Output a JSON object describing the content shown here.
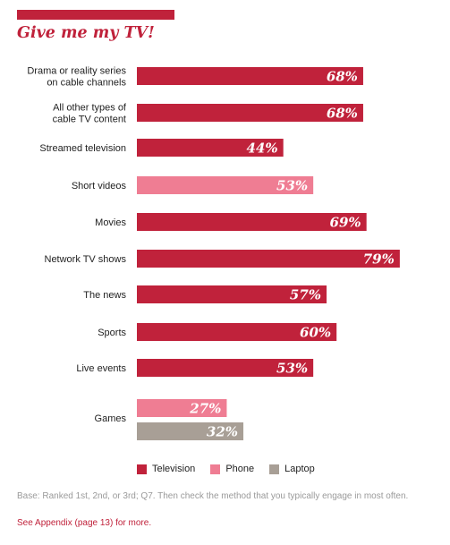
{
  "title": "Give me my TV!",
  "colors": {
    "accent": "#C0223B",
    "television": "#C0223B",
    "phone": "#EF7D93",
    "laptop": "#A89F96",
    "footnote": "#9A9A9A",
    "link": "#C0223B"
  },
  "chart_data": {
    "type": "bar",
    "orientation": "horizontal",
    "title": "Give me my TV!",
    "value_suffix": "%",
    "xlim": [
      0,
      100
    ],
    "grid": false,
    "legend_position": "bottom",
    "legend": [
      "Television",
      "Phone",
      "Laptop"
    ],
    "categories": [
      {
        "label": [
          "Drama or reality series",
          "on cable channels"
        ],
        "bars": [
          {
            "series": "Television",
            "value": 68
          }
        ]
      },
      {
        "label": [
          "All other types of",
          "cable TV content"
        ],
        "bars": [
          {
            "series": "Television",
            "value": 68
          }
        ]
      },
      {
        "label": [
          "Streamed television"
        ],
        "bars": [
          {
            "series": "Television",
            "value": 44
          }
        ]
      },
      {
        "label": [
          "Short videos"
        ],
        "bars": [
          {
            "series": "Phone",
            "value": 53
          }
        ]
      },
      {
        "label": [
          "Movies"
        ],
        "bars": [
          {
            "series": "Television",
            "value": 69
          }
        ]
      },
      {
        "label": [
          "Network TV shows"
        ],
        "bars": [
          {
            "series": "Television",
            "value": 79
          }
        ]
      },
      {
        "label": [
          "The news"
        ],
        "bars": [
          {
            "series": "Television",
            "value": 57
          }
        ]
      },
      {
        "label": [
          "Sports"
        ],
        "bars": [
          {
            "series": "Television",
            "value": 60
          }
        ]
      },
      {
        "label": [
          "Live events"
        ],
        "bars": [
          {
            "series": "Television",
            "value": 53
          }
        ]
      },
      {
        "label": [
          "Games"
        ],
        "bars": [
          {
            "series": "Phone",
            "value": 27
          },
          {
            "series": "Laptop",
            "value": 32
          }
        ]
      }
    ]
  },
  "legend_labels": {
    "television": "Television",
    "phone": "Phone",
    "laptop": "Laptop"
  },
  "footnote": "Base: Ranked 1st, 2nd, or 3rd; Q7. Then check the method that you typically engage in most often.",
  "appendix_link": "See Appendix (page 13) for more."
}
